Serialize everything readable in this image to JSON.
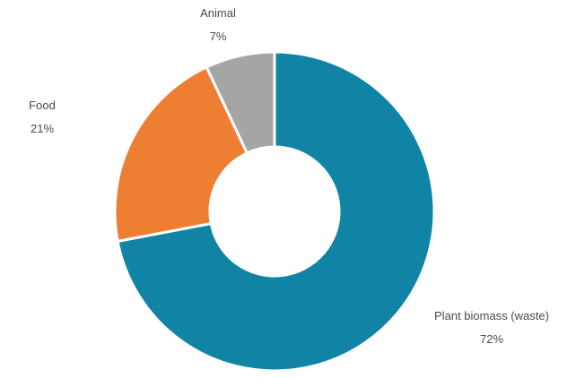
{
  "chart_data": {
    "type": "pie",
    "variant": "donut",
    "title": "",
    "slices": [
      {
        "label": "Plant biomass (waste)",
        "value": 72,
        "value_label": "72%",
        "color": "#1184a6"
      },
      {
        "label": "Food",
        "value": 21,
        "value_label": "21%",
        "color": "#ee7e32"
      },
      {
        "label": "Animal",
        "value": 7,
        "value_label": "7%",
        "color": "#a5a5a5"
      }
    ],
    "legend": "none",
    "data_labels": "outside"
  }
}
